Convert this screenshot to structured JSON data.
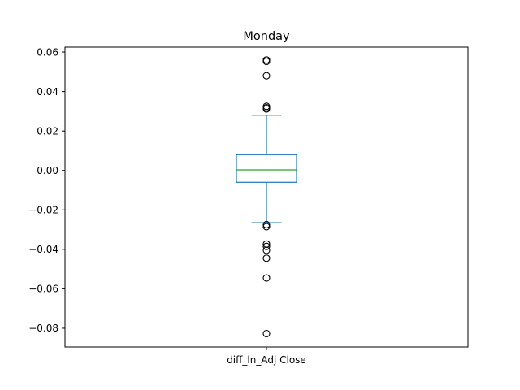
{
  "chart_data": {
    "type": "box",
    "title": "Monday",
    "xlabel": "",
    "ylabel": "",
    "categories": [
      "diff_ln_Adj Close"
    ],
    "ylim": [
      -0.0895,
      0.0625
    ],
    "yticks": [
      0.06,
      0.04,
      0.02,
      0.0,
      -0.02,
      -0.04,
      -0.06,
      -0.08
    ],
    "ytick_labels": [
      "0.06",
      "0.04",
      "0.02",
      "0.00",
      "−0.02",
      "−0.04",
      "−0.06",
      "−0.08"
    ],
    "box": {
      "q1": -0.006,
      "median": 0.0003,
      "q3": 0.008,
      "whisker_low": -0.0265,
      "whisker_high": 0.028
    },
    "outliers": [
      0.056,
      0.0553,
      0.048,
      0.0325,
      0.0318,
      0.0312,
      -0.0275,
      -0.0285,
      -0.0373,
      -0.0385,
      -0.0405,
      -0.0445,
      -0.0545,
      -0.0827
    ],
    "grid": false,
    "colors": {
      "box": "#1f77b4",
      "median": "#2ca02c",
      "outlier": "#000000",
      "axes": "#000000"
    }
  }
}
